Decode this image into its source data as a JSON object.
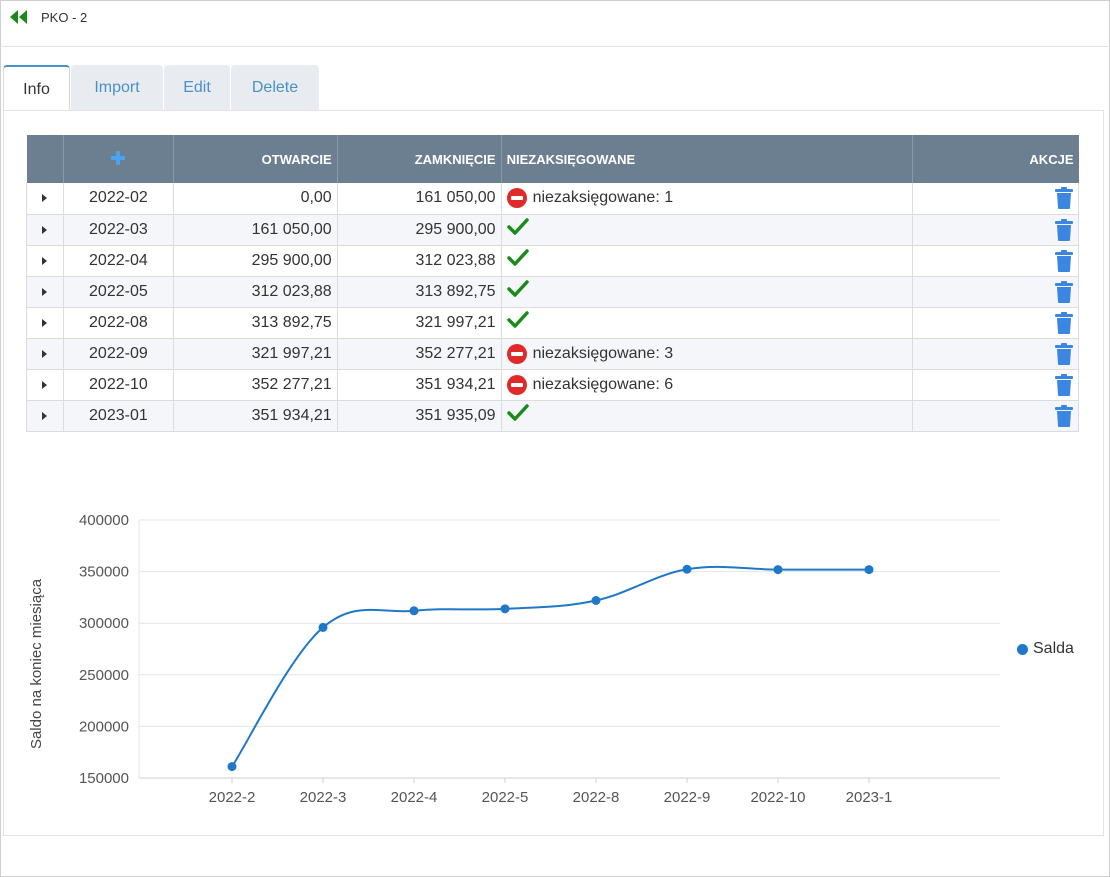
{
  "header": {
    "title": "PKO - 2",
    "back_icon": "double-chevron-left-icon"
  },
  "tabs": [
    {
      "label": "Info",
      "active": true
    },
    {
      "label": "Import",
      "active": false
    },
    {
      "label": "Edit",
      "active": false
    },
    {
      "label": "Delete",
      "active": false
    }
  ],
  "table": {
    "columns": {
      "add_icon": "plus-icon",
      "opening": "OTWARCIE",
      "closing": "ZAMKNIĘCIE",
      "unbooked": "NIEZAKSIĘGOWANE",
      "actions": "AKCJE"
    },
    "rows": [
      {
        "period": "2022-02",
        "opening": "0,00",
        "closing": "161 050,00",
        "status": "error",
        "unbooked_text": "niezaksięgowane: 1"
      },
      {
        "period": "2022-03",
        "opening": "161 050,00",
        "closing": "295 900,00",
        "status": "ok",
        "unbooked_text": ""
      },
      {
        "period": "2022-04",
        "opening": "295 900,00",
        "closing": "312 023,88",
        "status": "ok",
        "unbooked_text": ""
      },
      {
        "period": "2022-05",
        "opening": "312 023,88",
        "closing": "313 892,75",
        "status": "ok",
        "unbooked_text": ""
      },
      {
        "period": "2022-08",
        "opening": "313 892,75",
        "closing": "321 997,21",
        "status": "ok",
        "unbooked_text": ""
      },
      {
        "period": "2022-09",
        "opening": "321 997,21",
        "closing": "352 277,21",
        "status": "error",
        "unbooked_text": "niezaksięgowane: 3"
      },
      {
        "period": "2022-10",
        "opening": "352 277,21",
        "closing": "351 934,21",
        "status": "error",
        "unbooked_text": "niezaksięgowane: 6"
      },
      {
        "period": "2023-01",
        "opening": "351 934,21",
        "closing": "351 935,09",
        "status": "ok",
        "unbooked_text": ""
      }
    ]
  },
  "colors": {
    "header_bg": "#6b7f91",
    "accent": "#4a90c8",
    "error": "#e02a2a",
    "ok": "#1a8a1a",
    "trash": "#3a86e0",
    "series": "#1f78c8"
  },
  "chart_data": {
    "type": "line",
    "categories": [
      "2022-2",
      "2022-3",
      "2022-4",
      "2022-5",
      "2022-8",
      "2022-9",
      "2022-10",
      "2023-1"
    ],
    "series": [
      {
        "name": "Salda",
        "values": [
          161050.0,
          295900.0,
          312023.88,
          313892.75,
          321997.21,
          352277.21,
          351934.21,
          351935.09
        ]
      }
    ],
    "ylabel": "Saldo na koniec miesiąca",
    "yticks": [
      150000,
      200000,
      250000,
      300000,
      350000,
      400000
    ],
    "ylim": [
      150000,
      400000
    ],
    "legend": "right",
    "grid": true,
    "smooth": true
  }
}
